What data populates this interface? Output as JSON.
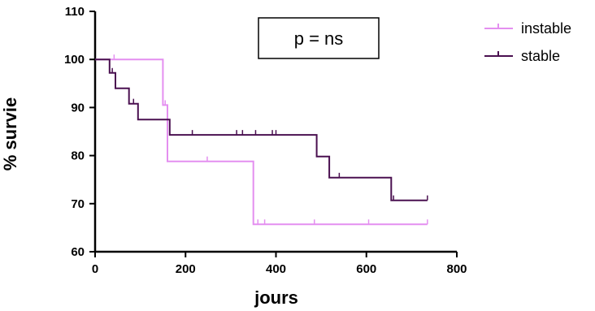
{
  "chart_data": {
    "type": "line",
    "step": true,
    "xlabel": "jours",
    "ylabel": "% survie",
    "xlim": [
      0,
      800
    ],
    "ylim": [
      60,
      110
    ],
    "xticks": [
      0,
      200,
      400,
      600,
      800
    ],
    "yticks": [
      60,
      70,
      80,
      90,
      100,
      110
    ],
    "grid": false,
    "legend_position": "top-right",
    "annotation": "p = ns",
    "series": [
      {
        "name": "instable",
        "color": "#e48ff0",
        "steps": [
          [
            0,
            100
          ],
          [
            150,
            100
          ],
          [
            150,
            90.5
          ],
          [
            160,
            90.5
          ],
          [
            160,
            78.8
          ],
          [
            350,
            78.8
          ],
          [
            350,
            65.7
          ],
          [
            735,
            65.7
          ]
        ],
        "censored": [
          [
            42,
            100
          ],
          [
            155,
            90.5
          ],
          [
            248,
            78.8
          ],
          [
            360,
            65.7
          ],
          [
            375,
            65.7
          ],
          [
            485,
            65.7
          ],
          [
            605,
            65.7
          ],
          [
            735,
            65.7
          ]
        ]
      },
      {
        "name": "stable",
        "color": "#4a1050",
        "steps": [
          [
            0,
            100
          ],
          [
            32,
            100
          ],
          [
            32,
            97.2
          ],
          [
            45,
            97.2
          ],
          [
            45,
            94
          ],
          [
            75,
            94
          ],
          [
            75,
            90.8
          ],
          [
            95,
            90.8
          ],
          [
            95,
            87.5
          ],
          [
            165,
            87.5
          ],
          [
            165,
            84.3
          ],
          [
            490,
            84.3
          ],
          [
            490,
            79.8
          ],
          [
            518,
            79.8
          ],
          [
            518,
            75.4
          ],
          [
            655,
            75.4
          ],
          [
            655,
            70.7
          ],
          [
            735,
            70.7
          ]
        ],
        "censored": [
          [
            38,
            97.2
          ],
          [
            85,
            90.8
          ],
          [
            215,
            84.3
          ],
          [
            313,
            84.3
          ],
          [
            326,
            84.3
          ],
          [
            355,
            84.3
          ],
          [
            392,
            84.3
          ],
          [
            400,
            84.3
          ],
          [
            540,
            75.4
          ],
          [
            660,
            70.7
          ],
          [
            735,
            70.7
          ]
        ]
      }
    ]
  }
}
